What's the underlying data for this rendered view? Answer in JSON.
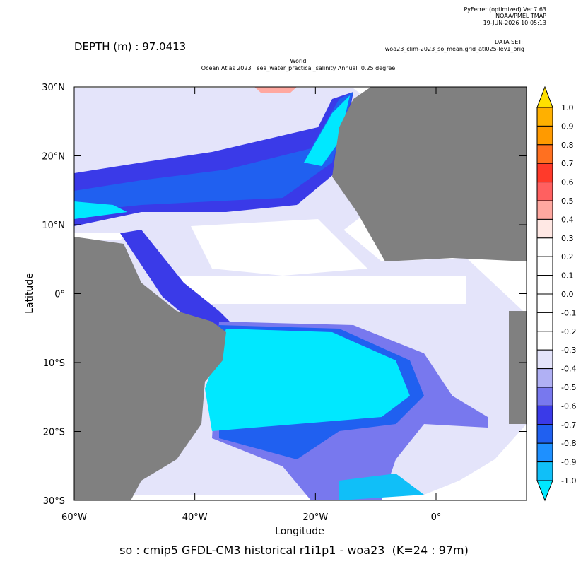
{
  "header": {
    "program": "PyFerret (optimized) Ver.7.63",
    "org": "NOAA/PMEL TMAP",
    "timestamp": "19-JUN-2026 10:05:13",
    "dataset_label": "DATA SET:",
    "dataset": "woa23_clim-2023_so_mean.grid_atl025-lev1_orig",
    "depth": "DEPTH (m) : 97.0413",
    "title_line1": "World",
    "title_line2": "Ocean Atlas 2023 : sea_water_practical_salinity Annual  0.25 degree"
  },
  "plot": {
    "xlabel": "Longitude",
    "ylabel": "Latitude",
    "xlim": [
      -60,
      15
    ],
    "ylim": [
      -30,
      30
    ],
    "xticks": [
      {
        "value": -60,
        "label": "60°W"
      },
      {
        "value": -40,
        "label": "40°W"
      },
      {
        "value": -20,
        "label": "20°W"
      },
      {
        "value": 0,
        "label": "0°"
      }
    ],
    "yticks": [
      {
        "value": 30,
        "label": "30°N"
      },
      {
        "value": 20,
        "label": "20°N"
      },
      {
        "value": 10,
        "label": "10°N"
      },
      {
        "value": 0,
        "label": "0°"
      },
      {
        "value": -10,
        "label": "10°S"
      },
      {
        "value": -20,
        "label": "20°S"
      },
      {
        "value": -30,
        "label": "30°S"
      }
    ]
  },
  "colorbar": {
    "levels": [
      "1.0",
      "0.9",
      "0.8",
      "0.7",
      "0.6",
      "0.5",
      "0.4",
      "0.3",
      "0.2",
      "0.1",
      "0.0",
      "-0.1",
      "-0.2",
      "-0.3",
      "-0.4",
      "-0.5",
      "-0.6",
      "-0.7",
      "-0.8",
      "-0.9",
      "-1.0"
    ],
    "colors": [
      "#ffe000",
      "#ffb000",
      "#ff9a00",
      "#ff7020",
      "#ff3a2a",
      "#ff6060",
      "#ffa8a0",
      "#ffe8e4",
      "#ffffff",
      "#ffffff",
      "#ffffff",
      "#ffffff",
      "#ffffff",
      "#ffffff",
      "#e4e4fa",
      "#b0b0f4",
      "#7878ee",
      "#3a3ae8",
      "#2060f0",
      "#1e90ff",
      "#10bff8",
      "#00e8ff"
    ]
  },
  "caption": "so : cmip5 GFDL-CM3 historical r1i1p1 - woa23  (K=24 : 97m)"
}
